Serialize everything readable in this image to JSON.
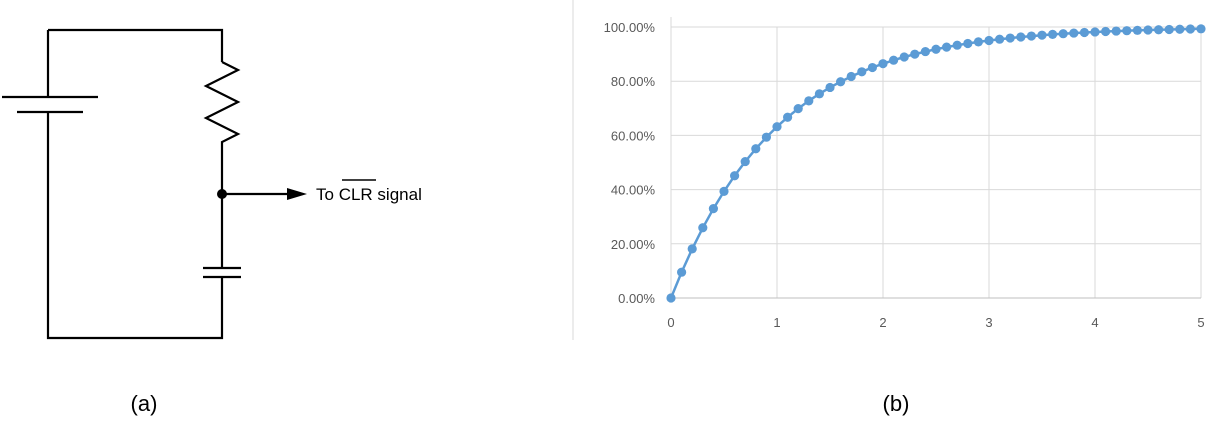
{
  "figure": {
    "panel_a_label": "(a)",
    "panel_b_label": "(b)"
  },
  "circuit": {
    "components": [
      "battery",
      "resistor",
      "capacitor",
      "output-node",
      "output-arrow"
    ],
    "output_label_prefix": "To ",
    "output_label_signal": "CLR",
    "output_label_suffix": " signal"
  },
  "chart_data": {
    "type": "scatter",
    "title": "",
    "xlabel": "",
    "ylabel": "",
    "x_ticks": [
      "0",
      "1",
      "2",
      "3",
      "4",
      "5"
    ],
    "y_ticks": [
      "0.00%",
      "20.00%",
      "40.00%",
      "60.00%",
      "80.00%",
      "100.00%"
    ],
    "xlim": [
      0,
      5
    ],
    "ylim": [
      0,
      1
    ],
    "grid": true,
    "legend": "none",
    "marker_color": "#5B9BD5",
    "line_color": "#5B9BD5",
    "series": [
      {
        "x": [
          0,
          0.1,
          0.2,
          0.3,
          0.4,
          0.5,
          0.6,
          0.7,
          0.8,
          0.9,
          1.0,
          1.1,
          1.2,
          1.3,
          1.4,
          1.5,
          1.6,
          1.7,
          1.8,
          1.9,
          2.0,
          2.1,
          2.2,
          2.3,
          2.4,
          2.5,
          2.6,
          2.7,
          2.8,
          2.9,
          3.0,
          3.1,
          3.2,
          3.3,
          3.4,
          3.5,
          3.6,
          3.7,
          3.8,
          3.9,
          4.0,
          4.1,
          4.2,
          4.3,
          4.4,
          4.5,
          4.6,
          4.7,
          4.8,
          4.9,
          5.0
        ],
        "values": [
          0,
          0.0952,
          0.1813,
          0.2592,
          0.3297,
          0.3935,
          0.4512,
          0.5034,
          0.5507,
          0.5934,
          0.6321,
          0.6671,
          0.6988,
          0.7275,
          0.7534,
          0.7769,
          0.7981,
          0.8173,
          0.8347,
          0.8504,
          0.8647,
          0.8775,
          0.8892,
          0.8997,
          0.9093,
          0.9179,
          0.9257,
          0.9328,
          0.9392,
          0.945,
          0.9502,
          0.955,
          0.9592,
          0.9631,
          0.9666,
          0.9698,
          0.9727,
          0.9753,
          0.9776,
          0.9798,
          0.9817,
          0.9834,
          0.985,
          0.9864,
          0.9877,
          0.9889,
          0.9899,
          0.9909,
          0.9918,
          0.9926,
          0.9933
        ]
      }
    ]
  }
}
